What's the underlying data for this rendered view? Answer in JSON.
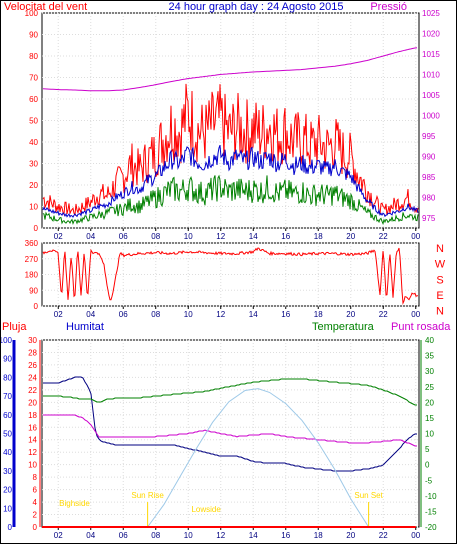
{
  "header": {
    "left_label": "Velocitat del vent",
    "title": "24 hour graph day : 24 Agosto 2015",
    "right_label": "Pressió"
  },
  "lower_header": {
    "rain_label": "Pluja",
    "humidity_label": "Humitat",
    "temperature_label": "Temperatura",
    "dewpoint_label": "Punt rosada"
  },
  "colors": {
    "wind_gust": "#ff0000",
    "wind_avg": "#0000cc",
    "wind_min": "#008000",
    "pressure": "#cc00cc",
    "wind_dir": "#ff0000",
    "humidity": "#000080",
    "temperature": "#008000",
    "dewpoint": "#cc00cc",
    "sun": "#9ec9e8",
    "rain": "#ff0000",
    "annotation": "#ffd700",
    "title": "#0000cc"
  },
  "chart_data": [
    {
      "type": "line",
      "name": "wind-pressure",
      "x_ticks": [
        "02",
        "04",
        "06",
        "08",
        "10",
        "12",
        "14",
        "16",
        "18",
        "20",
        "22",
        "00"
      ],
      "xlim": [
        1,
        24.2
      ],
      "y_left_ticks": [
        0,
        10,
        20,
        30,
        40,
        50,
        60,
        70,
        80,
        90,
        100
      ],
      "ylim_left": [
        0,
        100
      ],
      "y_right_ticks": [
        975,
        980,
        985,
        990,
        995,
        1000,
        1005,
        1010,
        1015,
        1020,
        1025
      ],
      "ylim_right": [
        972.5,
        1025
      ],
      "series": [
        {
          "key": "gust",
          "axis": "left",
          "x": [
            1,
            1.5,
            2,
            2.5,
            3,
            3.5,
            4,
            4.5,
            5,
            5.5,
            6,
            6.5,
            7,
            7.5,
            8,
            8.5,
            9,
            9.5,
            10,
            10.5,
            11,
            11.5,
            12,
            12.5,
            13,
            13.5,
            14,
            14.5,
            15,
            15.5,
            16,
            16.5,
            17,
            17.5,
            18,
            18.5,
            19,
            19.5,
            20,
            20.5,
            21,
            21.5,
            22,
            22.5,
            23,
            23.5,
            24
          ],
          "y": [
            14,
            12,
            10,
            9,
            8,
            10,
            12,
            16,
            15,
            20,
            24,
            30,
            27,
            32,
            35,
            42,
            48,
            45,
            54,
            46,
            44,
            48,
            50,
            44,
            47,
            45,
            46,
            44,
            48,
            43,
            45,
            40,
            42,
            38,
            40,
            37,
            40,
            35,
            33,
            24,
            18,
            12,
            8,
            10,
            12,
            14,
            10
          ]
        },
        {
          "key": "avg",
          "axis": "left",
          "x": [
            1,
            1.5,
            2,
            2.5,
            3,
            3.5,
            4,
            4.5,
            5,
            5.5,
            6,
            6.5,
            7,
            7.5,
            8,
            8.5,
            9,
            9.5,
            10,
            10.5,
            11,
            11.5,
            12,
            12.5,
            13,
            13.5,
            14,
            14.5,
            15,
            15.5,
            16,
            16.5,
            17,
            17.5,
            18,
            18.5,
            19,
            19.5,
            20,
            20.5,
            21,
            21.5,
            22,
            22.5,
            23,
            23.5,
            24
          ],
          "y": [
            9,
            8,
            7,
            6,
            6,
            7,
            8,
            10,
            11,
            14,
            16,
            19,
            18,
            22,
            24,
            28,
            32,
            30,
            35,
            31,
            30,
            33,
            34,
            31,
            33,
            31,
            33,
            31,
            33,
            30,
            32,
            29,
            30,
            28,
            29,
            27,
            29,
            26,
            24,
            18,
            13,
            9,
            6,
            7,
            8,
            10,
            8
          ]
        },
        {
          "key": "low",
          "axis": "left",
          "x": [
            1,
            1.5,
            2,
            2.5,
            3,
            3.5,
            4,
            4.5,
            5,
            5.5,
            6,
            6.5,
            7,
            7.5,
            8,
            8.5,
            9,
            9.5,
            10,
            10.5,
            11,
            11.5,
            12,
            12.5,
            13,
            13.5,
            14,
            14.5,
            15,
            15.5,
            16,
            16.5,
            17,
            17.5,
            18,
            18.5,
            19,
            19.5,
            20,
            20.5,
            21,
            21.5,
            22,
            22.5,
            23,
            23.5,
            24
          ],
          "y": [
            6,
            5,
            4,
            3,
            3,
            4,
            5,
            6,
            7,
            8,
            9,
            11,
            10,
            12,
            14,
            16,
            18,
            17,
            19,
            17,
            16,
            18,
            19,
            17,
            18,
            17,
            18,
            17,
            19,
            16,
            17,
            16,
            17,
            15,
            16,
            15,
            16,
            14,
            13,
            10,
            7,
            5,
            3,
            4,
            5,
            6,
            5
          ]
        },
        {
          "key": "pressure",
          "axis": "right",
          "x": [
            1,
            2,
            3,
            4,
            5,
            6,
            7,
            8,
            9,
            10,
            11,
            12,
            13,
            14,
            15,
            16,
            17,
            18,
            19,
            20,
            21,
            22,
            23,
            24
          ],
          "y": [
            1006.5,
            1006.3,
            1006.2,
            1006,
            1006,
            1006.2,
            1006.8,
            1007.5,
            1008.3,
            1009,
            1009.5,
            1010,
            1010.3,
            1010.6,
            1010.8,
            1011,
            1011.2,
            1011.6,
            1012,
            1012.6,
            1013.4,
            1014.5,
            1015.6,
            1016.5
          ]
        }
      ]
    },
    {
      "type": "line",
      "name": "wind-direction",
      "x_ticks": [
        "02",
        "04",
        "06",
        "08",
        "10",
        "12",
        "14",
        "16",
        "18",
        "20",
        "22",
        "00"
      ],
      "xlim": [
        1,
        24.2
      ],
      "y_ticks": [
        0,
        90,
        180,
        270,
        360
      ],
      "ylim": [
        0,
        360
      ],
      "right_labels": [
        "N",
        "W",
        "S",
        "E",
        "N"
      ],
      "x": [
        1,
        1.5,
        2,
        2.2,
        2.4,
        2.6,
        2.8,
        3,
        3.2,
        3.4,
        3.6,
        3.8,
        4,
        4.2,
        4.4,
        4.6,
        4.8,
        5,
        5.2,
        5.4,
        5.6,
        5.8,
        6,
        7,
        8,
        9,
        10,
        11,
        12,
        13,
        14,
        14.3,
        15,
        16,
        17,
        18,
        19,
        20,
        21,
        21.5,
        21.8,
        22,
        22.2,
        22.4,
        22.6,
        22.8,
        23,
        23.2,
        23.4,
        23.6,
        23.8,
        24
      ],
      "y": [
        300,
        320,
        300,
        40,
        330,
        30,
        300,
        20,
        340,
        60,
        310,
        30,
        320,
        300,
        310,
        280,
        240,
        120,
        30,
        90,
        200,
        300,
        290,
        300,
        305,
        300,
        310,
        305,
        300,
        300,
        310,
        330,
        300,
        300,
        295,
        300,
        300,
        295,
        300,
        320,
        60,
        340,
        10,
        320,
        50,
        300,
        330,
        20,
        60,
        30,
        80,
        60
      ]
    },
    {
      "type": "line",
      "name": "temperature-humidity",
      "x_ticks": [
        "02",
        "04",
        "06",
        "08",
        "10",
        "12",
        "14",
        "16",
        "18",
        "20",
        "22",
        "00"
      ],
      "xlim": [
        1,
        24.2
      ],
      "y_humidity_ticks": [
        0,
        10,
        20,
        30,
        40,
        50,
        60,
        70,
        80,
        90,
        100
      ],
      "ylim_humidity": [
        0,
        100
      ],
      "y_rain_ticks": [
        0,
        2,
        4,
        6,
        8,
        10,
        12,
        14,
        16,
        18,
        20,
        22,
        24,
        26,
        28,
        30
      ],
      "ylim_rain": [
        0,
        30
      ],
      "y_temp_ticks": [
        -20,
        -15,
        -10,
        -5,
        0,
        5,
        10,
        15,
        20,
        25,
        30,
        35,
        40
      ],
      "ylim_temp": [
        -20,
        40
      ],
      "annotations": [
        {
          "text": "Sun Rise",
          "x": 7.5
        },
        {
          "text": "Sun Set",
          "x": 21.1
        },
        {
          "text": "Bighside",
          "x": 3.0
        },
        {
          "text": "Lowside",
          "x": 11.1
        }
      ],
      "series": [
        {
          "key": "humidity",
          "axis": "humidity",
          "x": [
            1,
            2,
            3,
            3.5,
            4,
            4.3,
            4.6,
            5,
            5.5,
            6,
            7,
            8,
            9,
            10,
            11,
            12,
            13,
            14,
            15,
            16,
            17,
            18,
            19,
            20,
            21,
            22,
            23,
            23.5,
            24
          ],
          "y": [
            77,
            77,
            80,
            80,
            72,
            50,
            46,
            45,
            44,
            44,
            44,
            44,
            44,
            42,
            40,
            38,
            38,
            35,
            34,
            34,
            32,
            31,
            30,
            30,
            31,
            33,
            42,
            47,
            50
          ]
        },
        {
          "key": "temperature",
          "axis": "temp",
          "x": [
            1,
            2,
            3,
            3.5,
            4,
            4.5,
            5,
            6,
            7,
            8,
            9,
            10,
            11,
            12,
            13,
            14,
            15,
            16,
            17,
            18,
            19,
            20,
            21,
            22,
            23,
            24
          ],
          "y": [
            22,
            22,
            21.5,
            21,
            21,
            20,
            21,
            21.5,
            21.5,
            22,
            22.5,
            23,
            23.5,
            24.5,
            25.5,
            26.5,
            27,
            27.5,
            27.5,
            27,
            26.5,
            26,
            25.5,
            24,
            22,
            19
          ]
        },
        {
          "key": "dewpoint",
          "axis": "temp",
          "x": [
            1,
            2,
            3,
            3.5,
            4,
            4.5,
            5,
            6,
            7,
            8,
            9,
            10,
            11,
            12,
            13,
            14,
            15,
            16,
            17,
            18,
            19,
            20,
            21,
            22,
            23,
            24
          ],
          "y": [
            16,
            16,
            16,
            15,
            13,
            9,
            9,
            9,
            9,
            9,
            9.5,
            10,
            11,
            10,
            9,
            9.5,
            10,
            9,
            8.5,
            8,
            7.5,
            7,
            7,
            7.5,
            8,
            6
          ]
        },
        {
          "key": "sun",
          "axis": "humidity",
          "x": [
            7.5,
            8.5,
            9.5,
            10.5,
            11.5,
            12.5,
            13.5,
            14.3,
            15,
            16,
            17,
            18,
            19,
            20,
            21.1
          ],
          "y": [
            0,
            12,
            27,
            42,
            56,
            67,
            73,
            74,
            72,
            66,
            57,
            45,
            31,
            15,
            0
          ]
        },
        {
          "key": "rain",
          "axis": "rain",
          "x": [
            1,
            24
          ],
          "y": [
            0,
            0
          ]
        }
      ]
    }
  ]
}
